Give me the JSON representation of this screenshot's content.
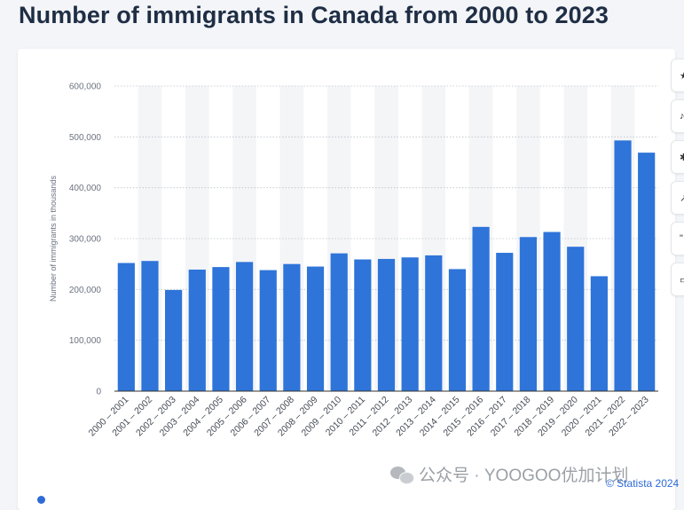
{
  "title": "Number of immigrants in Canada from 2000 to 2023",
  "watermark": "公众号 · YOOGOO优加计划",
  "credit": "© Statista 2024",
  "colors": {
    "bar": "#2e74d9",
    "band": "#f4f5f7",
    "title": "#1f2e45",
    "link": "#2e6bd6"
  },
  "chart_data": {
    "type": "bar",
    "categories": [
      "2000 – 2001",
      "2001 – 2002",
      "2002 – 2003",
      "2003 – 2004",
      "2004 – 2005",
      "2005 – 2006",
      "2006 – 2007",
      "2007 – 2008",
      "2008 – 2009",
      "2009 – 2010",
      "2010 – 2011",
      "2011 – 2012",
      "2012 – 2013",
      "2013 – 2014",
      "2014 – 2015",
      "2015 – 2016",
      "2016 – 2017",
      "2017 – 2018",
      "2018 – 2019",
      "2019 – 2020",
      "2020 – 2021",
      "2021 – 2022",
      "2022 – 2023"
    ],
    "values": [
      252000,
      256000,
      199000,
      239000,
      244000,
      254000,
      238000,
      250000,
      245000,
      271000,
      259000,
      260000,
      263000,
      267000,
      240000,
      323000,
      272000,
      303000,
      313000,
      284000,
      226000,
      493000,
      469000
    ],
    "ylabel": "Number of immigrants in thousands",
    "xlabel": "",
    "ylim": [
      0,
      600000
    ],
    "yticks": [
      0,
      100000,
      200000,
      300000,
      400000,
      500000,
      600000
    ],
    "ytick_labels": [
      "0",
      "100,000",
      "200,000",
      "300,000",
      "400,000",
      "500,000",
      "600,000"
    ],
    "grid": true,
    "legend": "none"
  }
}
